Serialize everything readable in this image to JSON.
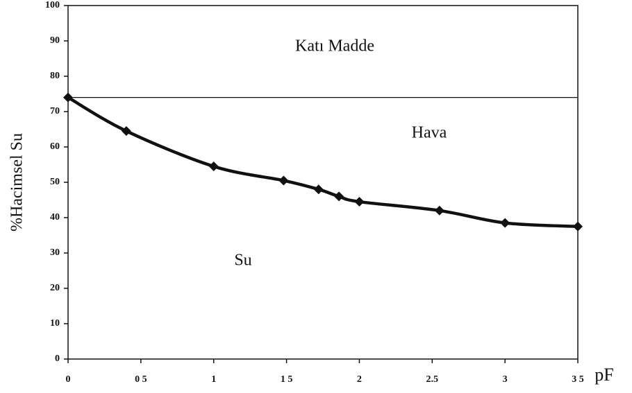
{
  "chart_data": {
    "type": "scatter",
    "x_label": "pF",
    "y_label": "%Hacimsel Su",
    "annotations": [
      "Katı Madde",
      "Hava",
      "Su"
    ],
    "x": [
      0,
      0.4,
      1,
      1.48,
      1.72,
      1.86,
      2,
      2.55,
      3,
      3.5
    ],
    "values": [
      74,
      64.5,
      54.5,
      50.5,
      48,
      46,
      44.5,
      42,
      38.5,
      37.5
    ],
    "color": "#111111",
    "reference_line": 74,
    "xlim": [
      0,
      3.5
    ],
    "xticks": [
      0,
      {
        "value": 0.5,
        "label": "0 5"
      },
      1,
      {
        "value": 1.5,
        "label": "1 5"
      },
      2,
      2.5,
      3,
      {
        "value": 3.5,
        "label": "3 5"
      }
    ],
    "ylim": [
      0,
      100
    ],
    "yticks": [
      0,
      10,
      20,
      30,
      40,
      50,
      60,
      70,
      80,
      90,
      100
    ]
  }
}
